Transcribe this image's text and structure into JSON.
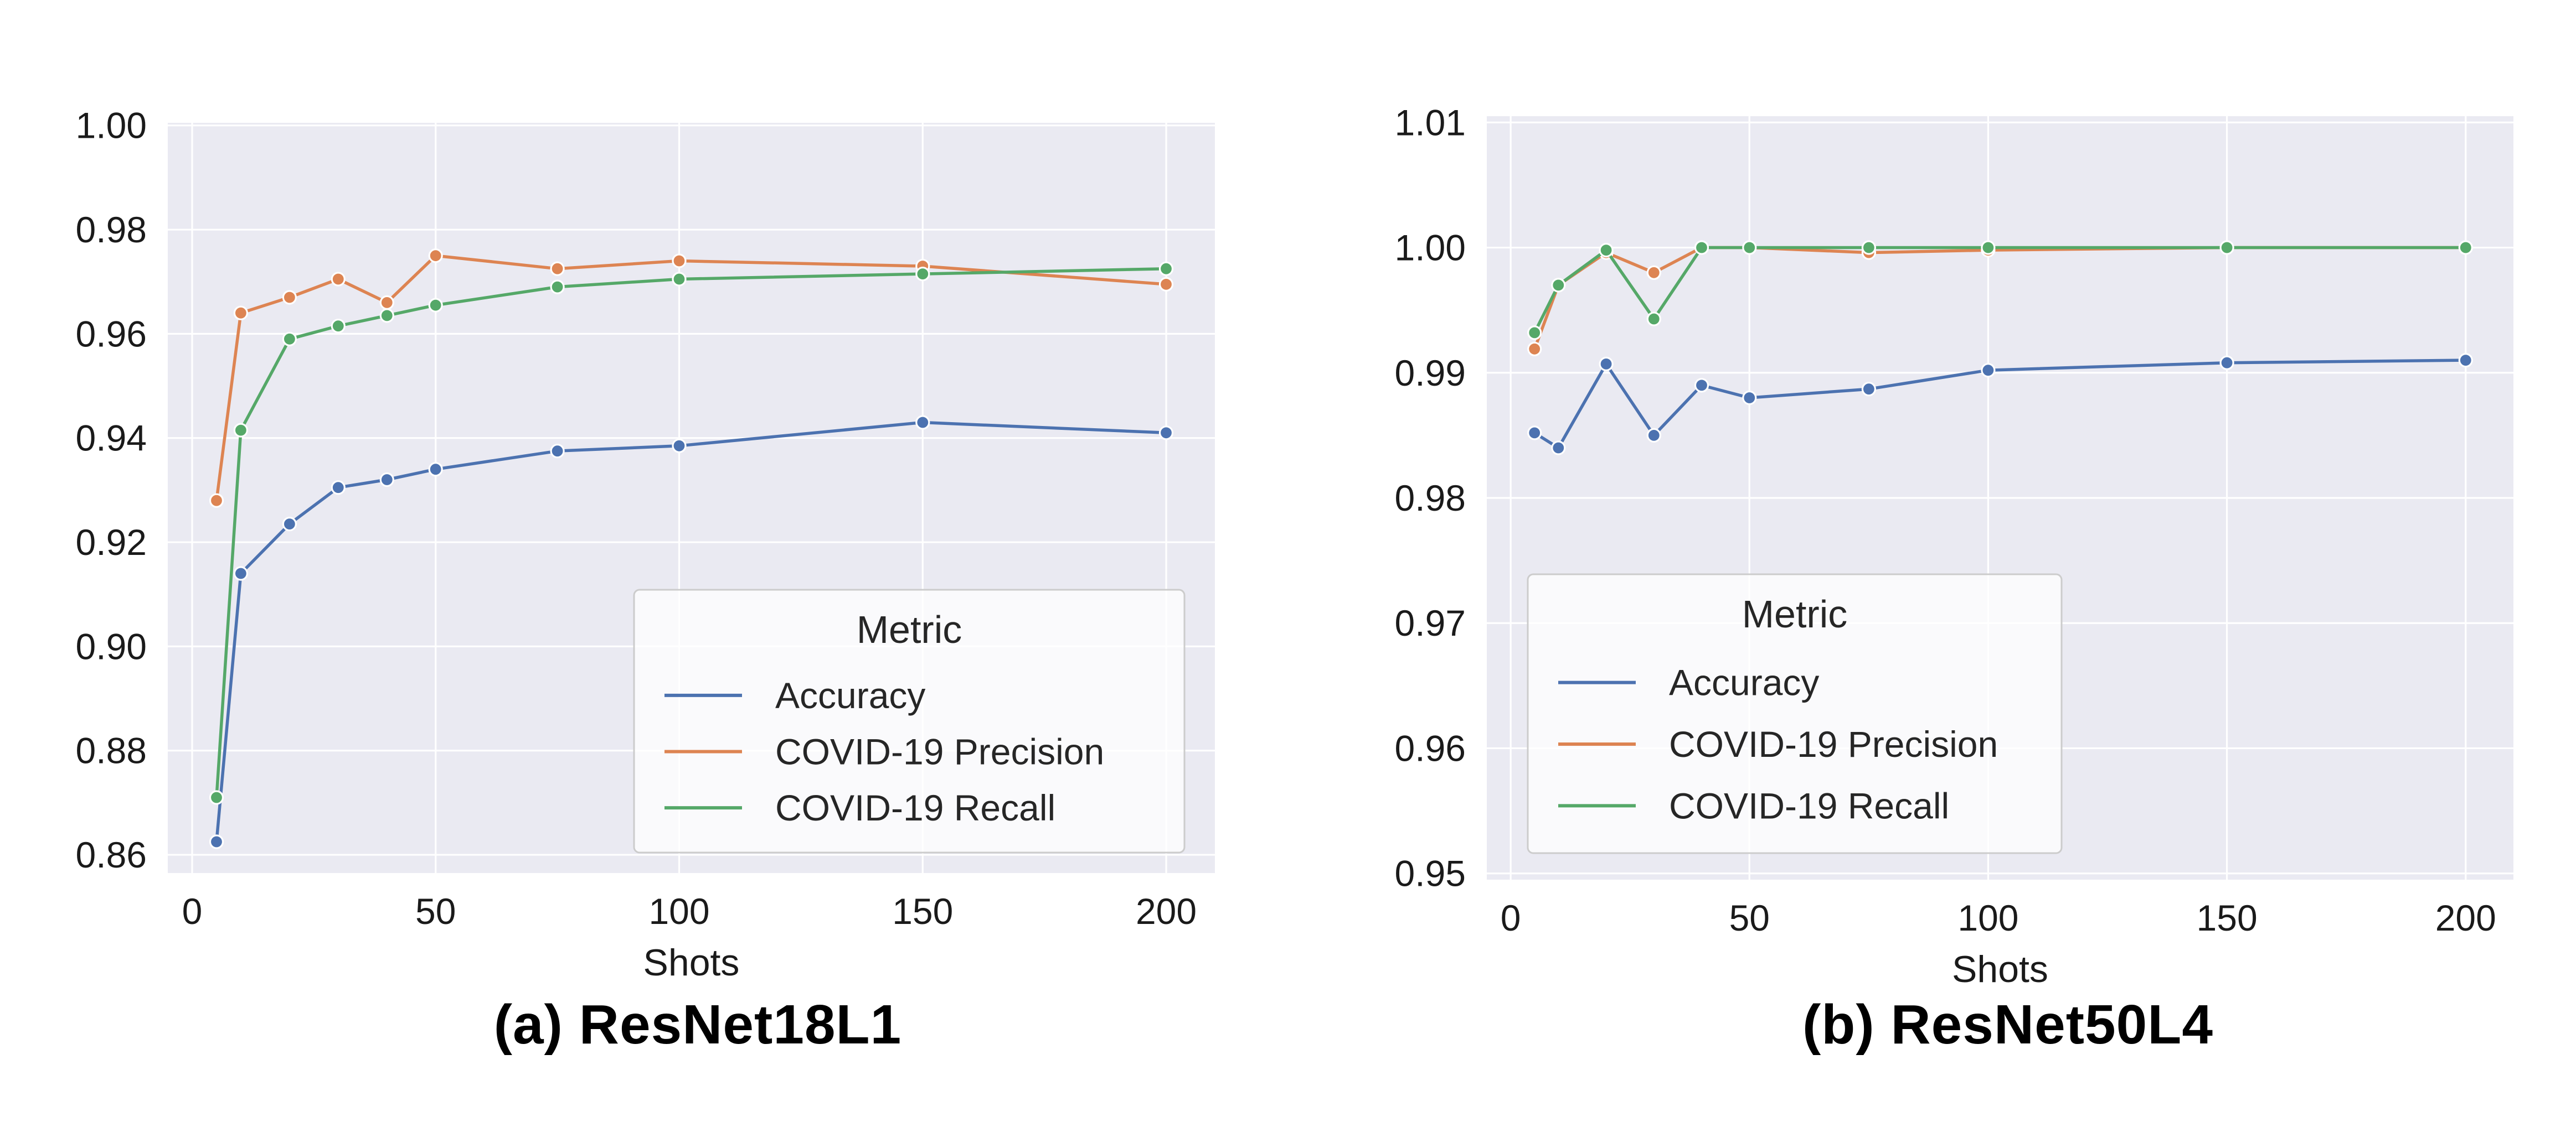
{
  "figure": {
    "background": "#ffffff",
    "plot_background": "#eaeaf2",
    "grid_color": "#ffffff",
    "tick_color": "#1a1a1a",
    "legend_text_color": "#262626",
    "legend_face": "rgba(255,255,255,0.75)",
    "legend_border": "#cccccc",
    "marker_edge": "#ffffff"
  },
  "chart_data": [
    {
      "type": "line",
      "title": "(a) ResNet18L1",
      "xlabel": "Shots",
      "ylabel": "",
      "legend_title": "Metric",
      "legend_position": "lower right",
      "grid": true,
      "x": [
        5,
        10,
        20,
        30,
        40,
        50,
        75,
        100,
        150,
        200
      ],
      "xlim": [
        -5,
        210
      ],
      "ylim": [
        0.8565,
        1.0005
      ],
      "xticks": [
        0,
        50,
        100,
        150,
        200
      ],
      "xtick_labels": [
        "0",
        "50",
        "100",
        "150",
        "200"
      ],
      "yticks": [
        0.86,
        0.88,
        0.9,
        0.92,
        0.94,
        0.96,
        0.98,
        1.0
      ],
      "ytick_labels": [
        "0.86",
        "0.88",
        "0.90",
        "0.92",
        "0.94",
        "0.96",
        "0.98",
        "1.00"
      ],
      "series": [
        {
          "name": "Accuracy",
          "color": "#4c72b0",
          "values": [
            0.8625,
            0.914,
            0.9235,
            0.9305,
            0.932,
            0.934,
            0.9375,
            0.9385,
            0.943,
            0.941
          ]
        },
        {
          "name": "COVID-19 Precision",
          "color": "#dd8452",
          "values": [
            0.928,
            0.964,
            0.967,
            0.9705,
            0.966,
            0.975,
            0.9725,
            0.974,
            0.973,
            0.9695
          ]
        },
        {
          "name": "COVID-19 Recall",
          "color": "#55a868",
          "values": [
            0.871,
            0.9415,
            0.959,
            0.9615,
            0.9635,
            0.9655,
            0.969,
            0.9705,
            0.9715,
            0.9725
          ]
        }
      ]
    },
    {
      "type": "line",
      "title": "(b) ResNet50L4",
      "xlabel": "Shots",
      "ylabel": "",
      "legend_title": "Metric",
      "legend_position": "lower left",
      "grid": true,
      "x": [
        5,
        10,
        20,
        30,
        40,
        50,
        75,
        100,
        150,
        200
      ],
      "xlim": [
        -5,
        210
      ],
      "ylim": [
        0.9495,
        1.0105
      ],
      "xticks": [
        0,
        50,
        100,
        150,
        200
      ],
      "xtick_labels": [
        "0",
        "50",
        "100",
        "150",
        "200"
      ],
      "yticks": [
        0.95,
        0.96,
        0.97,
        0.98,
        0.99,
        1.0,
        1.01
      ],
      "ytick_labels": [
        "0.95",
        "0.96",
        "0.97",
        "0.98",
        "0.99",
        "1.00",
        "1.01"
      ],
      "series": [
        {
          "name": "Accuracy",
          "color": "#4c72b0",
          "values": [
            0.9852,
            0.984,
            0.9907,
            0.985,
            0.989,
            0.988,
            0.9887,
            0.9902,
            0.9908,
            0.991
          ]
        },
        {
          "name": "COVID-19 Precision",
          "color": "#dd8452",
          "values": [
            0.9919,
            0.997,
            0.9996,
            0.998,
            1.0,
            1.0,
            0.9996,
            0.9998,
            1.0,
            1.0
          ]
        },
        {
          "name": "COVID-19 Recall",
          "color": "#55a868",
          "values": [
            0.9932,
            0.997,
            0.9998,
            0.9943,
            1.0,
            1.0,
            1.0,
            1.0,
            1.0,
            1.0
          ]
        }
      ]
    }
  ]
}
